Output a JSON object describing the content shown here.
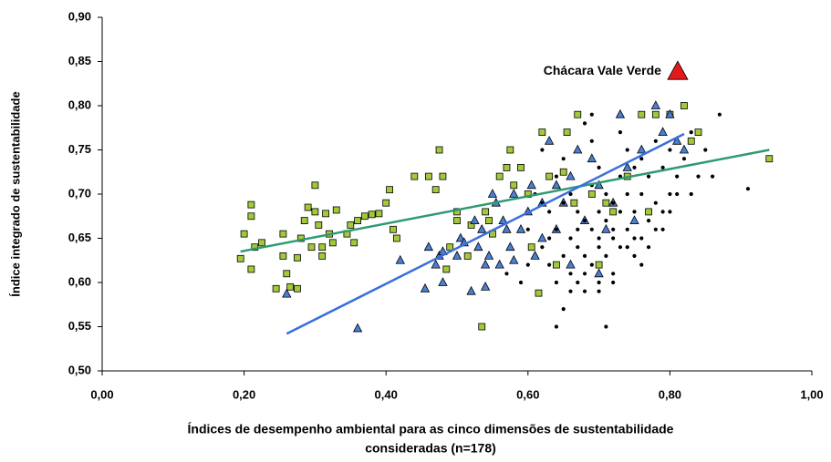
{
  "chart_data": {
    "type": "scatter",
    "xlabel": [
      "Índices de desempenho ambiental para as cinco dimensões de sustentabilidade",
      "consideradas (n=178)"
    ],
    "ylabel": "Índice integrado de sustentabilidade",
    "xlim": [
      0,
      1
    ],
    "ylim": [
      0.5,
      0.9
    ],
    "xticks": [
      {
        "value": 0,
        "label": "0,00"
      },
      {
        "value": 0.2,
        "label": "0,20"
      },
      {
        "value": 0.4,
        "label": "0,40"
      },
      {
        "value": 0.6,
        "label": "0,60"
      },
      {
        "value": 0.8,
        "label": "0,80"
      },
      {
        "value": 1,
        "label": "1,00"
      }
    ],
    "yticks": [
      {
        "value": 0.5,
        "label": "0,50"
      },
      {
        "value": 0.55,
        "label": "0,55"
      },
      {
        "value": 0.6,
        "label": "0,60"
      },
      {
        "value": 0.65,
        "label": "0,65"
      },
      {
        "value": 0.7,
        "label": "0,70"
      },
      {
        "value": 0.75,
        "label": "0,75"
      },
      {
        "value": 0.8,
        "label": "0,80"
      },
      {
        "value": 0.85,
        "label": "0,85"
      },
      {
        "value": 0.9,
        "label": "0,90"
      }
    ],
    "series": [
      {
        "marker": "square",
        "color": "#a3c93a",
        "x": [
          0.195,
          0.2,
          0.21,
          0.21,
          0.21,
          0.215,
          0.225,
          0.245,
          0.255,
          0.255,
          0.26,
          0.265,
          0.275,
          0.275,
          0.28,
          0.285,
          0.29,
          0.295,
          0.3,
          0.3,
          0.305,
          0.31,
          0.31,
          0.315,
          0.32,
          0.325,
          0.33,
          0.345,
          0.35,
          0.355,
          0.36,
          0.37,
          0.38,
          0.39,
          0.4,
          0.405,
          0.41,
          0.415,
          0.44,
          0.46,
          0.47,
          0.475,
          0.48,
          0.485,
          0.49,
          0.5,
          0.5,
          0.515,
          0.52,
          0.535,
          0.54,
          0.545,
          0.55,
          0.56,
          0.57,
          0.575,
          0.58,
          0.59,
          0.6,
          0.605,
          0.615,
          0.62,
          0.63,
          0.64,
          0.65,
          0.655,
          0.665,
          0.67,
          0.69,
          0.7,
          0.71,
          0.72,
          0.74,
          0.76,
          0.77,
          0.78,
          0.8,
          0.82,
          0.83,
          0.84,
          0.94
        ],
        "values": [
          0.627,
          0.655,
          0.688,
          0.675,
          0.615,
          0.64,
          0.645,
          0.593,
          0.63,
          0.655,
          0.61,
          0.595,
          0.593,
          0.628,
          0.65,
          0.67,
          0.685,
          0.64,
          0.71,
          0.68,
          0.665,
          0.64,
          0.63,
          0.678,
          0.655,
          0.645,
          0.682,
          0.655,
          0.665,
          0.645,
          0.67,
          0.675,
          0.677,
          0.678,
          0.69,
          0.705,
          0.66,
          0.65,
          0.72,
          0.72,
          0.705,
          0.75,
          0.72,
          0.615,
          0.64,
          0.68,
          0.67,
          0.63,
          0.665,
          0.55,
          0.68,
          0.67,
          0.655,
          0.72,
          0.73,
          0.75,
          0.71,
          0.73,
          0.7,
          0.64,
          0.588,
          0.77,
          0.72,
          0.62,
          0.725,
          0.77,
          0.69,
          0.79,
          0.7,
          0.62,
          0.69,
          0.68,
          0.72,
          0.79,
          0.68,
          0.79,
          0.79,
          0.8,
          0.76,
          0.77,
          0.74
        ]
      },
      {
        "marker": "triangle",
        "color": "#4a7fd4",
        "x": [
          0.26,
          0.36,
          0.42,
          0.455,
          0.46,
          0.47,
          0.475,
          0.48,
          0.48,
          0.5,
          0.505,
          0.51,
          0.52,
          0.525,
          0.53,
          0.535,
          0.54,
          0.545,
          0.55,
          0.555,
          0.56,
          0.565,
          0.57,
          0.575,
          0.58,
          0.59,
          0.6,
          0.605,
          0.61,
          0.62,
          0.63,
          0.64,
          0.65,
          0.66,
          0.67,
          0.68,
          0.69,
          0.7,
          0.71,
          0.72,
          0.73,
          0.74,
          0.75,
          0.76,
          0.78,
          0.79,
          0.8,
          0.81,
          0.82,
          0.54,
          0.66,
          0.7,
          0.58,
          0.62,
          0.64
        ],
        "values": [
          0.587,
          0.548,
          0.625,
          0.593,
          0.64,
          0.62,
          0.63,
          0.6,
          0.635,
          0.63,
          0.65,
          0.645,
          0.59,
          0.67,
          0.64,
          0.66,
          0.62,
          0.63,
          0.7,
          0.69,
          0.62,
          0.67,
          0.66,
          0.64,
          0.7,
          0.66,
          0.68,
          0.71,
          0.63,
          0.69,
          0.76,
          0.71,
          0.69,
          0.72,
          0.75,
          0.67,
          0.74,
          0.71,
          0.66,
          0.69,
          0.79,
          0.73,
          0.67,
          0.75,
          0.8,
          0.77,
          0.79,
          0.76,
          0.75,
          0.595,
          0.62,
          0.61,
          0.625,
          0.65,
          0.66
        ]
      },
      {
        "marker": "circle",
        "color": "#000000",
        "x": [
          0.6,
          0.61,
          0.62,
          0.62,
          0.63,
          0.63,
          0.64,
          0.64,
          0.64,
          0.65,
          0.65,
          0.65,
          0.66,
          0.66,
          0.66,
          0.67,
          0.67,
          0.67,
          0.68,
          0.68,
          0.68,
          0.69,
          0.69,
          0.69,
          0.7,
          0.7,
          0.7,
          0.7,
          0.71,
          0.71,
          0.71,
          0.72,
          0.72,
          0.72,
          0.73,
          0.73,
          0.73,
          0.74,
          0.74,
          0.74,
          0.75,
          0.75,
          0.75,
          0.76,
          0.76,
          0.76,
          0.77,
          0.77,
          0.78,
          0.78,
          0.79,
          0.79,
          0.8,
          0.8,
          0.81,
          0.82,
          0.83,
          0.84,
          0.85,
          0.86,
          0.87,
          0.91,
          0.64,
          0.71,
          0.66,
          0.68,
          0.62,
          0.69,
          0.73,
          0.75,
          0.57,
          0.59,
          0.6,
          0.63,
          0.67,
          0.7,
          0.72,
          0.74,
          0.77,
          0.79,
          0.81,
          0.68,
          0.65,
          0.7,
          0.72,
          0.76,
          0.78,
          0.8,
          0.83,
          0.69
        ],
        "values": [
          0.66,
          0.7,
          0.64,
          0.75,
          0.62,
          0.68,
          0.6,
          0.66,
          0.72,
          0.63,
          0.69,
          0.74,
          0.61,
          0.65,
          0.7,
          0.6,
          0.64,
          0.68,
          0.59,
          0.63,
          0.67,
          0.62,
          0.66,
          0.71,
          0.6,
          0.64,
          0.68,
          0.73,
          0.63,
          0.67,
          0.7,
          0.61,
          0.65,
          0.69,
          0.64,
          0.68,
          0.72,
          0.66,
          0.7,
          0.75,
          0.63,
          0.68,
          0.73,
          0.65,
          0.7,
          0.74,
          0.67,
          0.72,
          0.69,
          0.76,
          0.68,
          0.73,
          0.7,
          0.75,
          0.72,
          0.74,
          0.77,
          0.72,
          0.75,
          0.72,
          0.79,
          0.706,
          0.55,
          0.55,
          0.59,
          0.61,
          0.69,
          0.79,
          0.77,
          0.65,
          0.61,
          0.6,
          0.62,
          0.65,
          0.66,
          0.65,
          0.66,
          0.64,
          0.64,
          0.66,
          0.7,
          0.78,
          0.57,
          0.59,
          0.6,
          0.62,
          0.66,
          0.68,
          0.7,
          0.76
        ]
      },
      {
        "marker": "line",
        "color": "#2e9a70",
        "x": [
          0.195,
          0.94
        ],
        "values": [
          0.635,
          0.75
        ]
      },
      {
        "marker": "line",
        "color": "#3a6fdc",
        "x": [
          0.26,
          0.82
        ],
        "values": [
          0.542,
          0.768
        ]
      }
    ],
    "annotations": [
      {
        "text": "Chácara Vale Verde",
        "x": 0.811,
        "y": 0.839,
        "color": "#e31a1a"
      }
    ]
  }
}
